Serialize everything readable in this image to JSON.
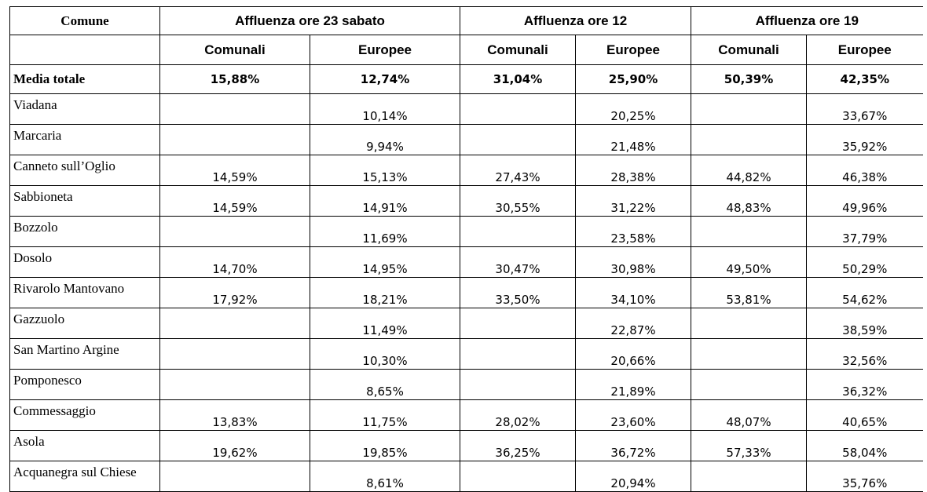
{
  "header": {
    "comune": "Comune",
    "groups": [
      "Affluenza ore 23 sabato",
      "Affluenza ore 12",
      "Affluenza ore 19"
    ],
    "sub": [
      "Comunali",
      "Europee",
      "Comunali",
      "Europee",
      "Comunali",
      "Europee"
    ]
  },
  "media": {
    "label": "Media totale",
    "values": [
      "15,88%",
      "12,74%",
      "31,04%",
      "25,90%",
      "50,39%",
      "42,35%"
    ]
  },
  "rows": [
    {
      "name": "Viadana",
      "v": [
        "",
        "10,14%",
        "",
        "20,25%",
        "",
        "33,67%"
      ]
    },
    {
      "name": "Marcaria",
      "v": [
        "",
        "9,94%",
        "",
        "21,48%",
        "",
        "35,92%"
      ]
    },
    {
      "name": "Canneto sull’Oglio",
      "v": [
        "14,59%",
        "15,13%",
        "27,43%",
        "28,38%",
        "44,82%",
        "46,38%"
      ]
    },
    {
      "name": "Sabbioneta",
      "v": [
        "14,59%",
        "14,91%",
        "30,55%",
        "31,22%",
        "48,83%",
        "49,96%"
      ]
    },
    {
      "name": "Bozzolo",
      "v": [
        "",
        "11,69%",
        "",
        "23,58%",
        "",
        "37,79%"
      ]
    },
    {
      "name": "Dosolo",
      "v": [
        "14,70%",
        "14,95%",
        "30,47%",
        "30,98%",
        "49,50%",
        "50,29%"
      ]
    },
    {
      "name": "Rivarolo Mantovano",
      "v": [
        "17,92%",
        "18,21%",
        "33,50%",
        "34,10%",
        "53,81%",
        "54,62%"
      ]
    },
    {
      "name": "Gazzuolo",
      "v": [
        "",
        "11,49%",
        "",
        "22,87%",
        "",
        "38,59%"
      ]
    },
    {
      "name": "San Martino Argine",
      "v": [
        "",
        "10,30%",
        "",
        "20,66%",
        "",
        "32,56%"
      ]
    },
    {
      "name": "Pomponesco",
      "v": [
        "",
        "8,65%",
        "",
        "21,89%",
        "",
        "36,32%"
      ]
    },
    {
      "name": "Commessaggio",
      "v": [
        "13,83%",
        "11,75%",
        "28,02%",
        "23,60%",
        "48,07%",
        "40,65%"
      ]
    },
    {
      "name": "Asola",
      "v": [
        "19,62%",
        "19,85%",
        "36,25%",
        "36,72%",
        "57,33%",
        "58,04%"
      ]
    },
    {
      "name": "Acquanegra sul Chiese",
      "v": [
        "",
        "8,61%",
        "",
        "20,94%",
        "",
        "35,76%"
      ]
    }
  ]
}
